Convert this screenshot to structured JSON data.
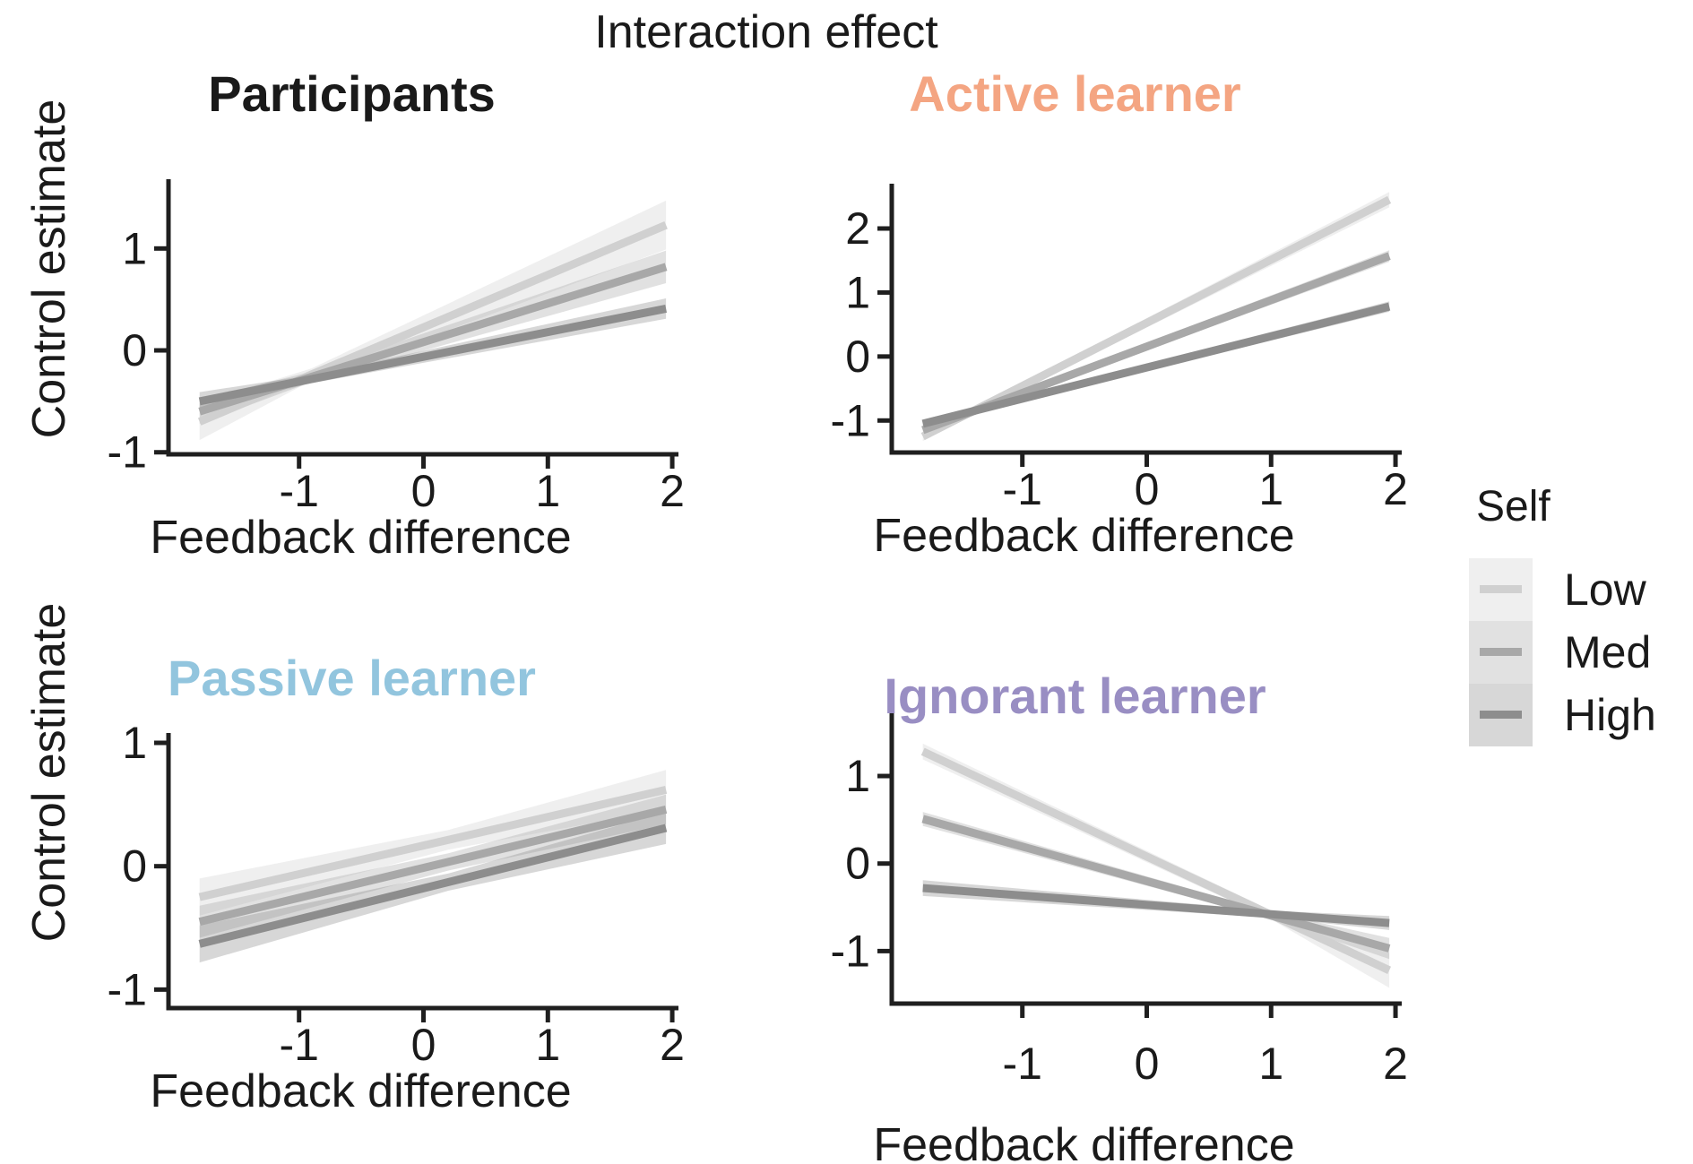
{
  "chart_data": {
    "type": "line",
    "title": "Interaction effect",
    "xlabel": "Feedback difference",
    "ylabel": "Control estimate",
    "grid": false,
    "legend": {
      "title": "Self",
      "position": "right",
      "items": [
        {
          "label": "Low"
        },
        {
          "label": "Med"
        },
        {
          "label": "High"
        }
      ]
    },
    "colors": {
      "Low": "#d0d0d0",
      "Med": "#a8a8a8",
      "High": "#8d8d8d",
      "ribbon_alpha": 0.35,
      "axis": "#1f1f1f"
    },
    "x_domain": [
      -2.05,
      2.05
    ],
    "x_ticks": [
      -1,
      0,
      1,
      2
    ],
    "line_x_range": [
      -1.8,
      1.95
    ],
    "panels": [
      {
        "title": "Participants",
        "title_color": "#1a1a1a",
        "y_ticks": [
          -1,
          0,
          1
        ],
        "y_domain": [
          -1.02,
          1.68
        ],
        "ci_mid_x": -0.9,
        "series": [
          {
            "name": "Low",
            "y_start": -0.7,
            "y_end": 1.23,
            "ci": [
              0.18,
              0.06,
              0.24
            ]
          },
          {
            "name": "Med",
            "y_start": -0.6,
            "y_end": 0.82,
            "ci": [
              0.12,
              0.05,
              0.16
            ]
          },
          {
            "name": "High",
            "y_start": -0.5,
            "y_end": 0.41,
            "ci": [
              0.09,
              0.04,
              0.1
            ]
          }
        ]
      },
      {
        "title": "Active learner",
        "title_color": "#F4A582",
        "y_ticks": [
          -1,
          0,
          1,
          2
        ],
        "y_domain": [
          -1.5,
          2.7
        ],
        "ci_mid_x": -1.0,
        "series": [
          {
            "name": "Low",
            "y_start": -1.25,
            "y_end": 2.45,
            "ci": [
              0.07,
              0.05,
              0.12
            ]
          },
          {
            "name": "Med",
            "y_start": -1.15,
            "y_end": 1.57,
            "ci": [
              0.06,
              0.04,
              0.09
            ]
          },
          {
            "name": "High",
            "y_start": -1.05,
            "y_end": 0.78,
            "ci": [
              0.06,
              0.04,
              0.08
            ]
          }
        ]
      },
      {
        "title": "Passive learner",
        "title_color": "#92C5DE",
        "y_ticks": [
          -1,
          0,
          1
        ],
        "y_domain": [
          -1.15,
          1.08
        ],
        "ci_mid_x": 0.2,
        "series": [
          {
            "name": "Low",
            "y_start": -0.25,
            "y_end": 0.62,
            "ci": [
              0.15,
              0.08,
              0.16
            ]
          },
          {
            "name": "Med",
            "y_start": -0.45,
            "y_end": 0.46,
            "ci": [
              0.13,
              0.07,
              0.12
            ]
          },
          {
            "name": "High",
            "y_start": -0.63,
            "y_end": 0.31,
            "ci": [
              0.15,
              0.07,
              0.13
            ]
          }
        ]
      },
      {
        "title": "Ignorant learner",
        "title_color": "#998EC3",
        "y_ticks": [
          -1,
          0,
          1
        ],
        "y_domain": [
          -1.6,
          1.85
        ],
        "ci_mid_x": 1.0,
        "series": [
          {
            "name": "Low",
            "y_start": 1.28,
            "y_end": -1.22,
            "ci": [
              0.09,
              0.05,
              0.2
            ]
          },
          {
            "name": "Med",
            "y_start": 0.51,
            "y_end": -0.97,
            "ci": [
              0.08,
              0.04,
              0.12
            ]
          },
          {
            "name": "High",
            "y_start": -0.28,
            "y_end": -0.68,
            "ci": [
              0.09,
              0.04,
              0.08
            ]
          }
        ]
      }
    ]
  }
}
